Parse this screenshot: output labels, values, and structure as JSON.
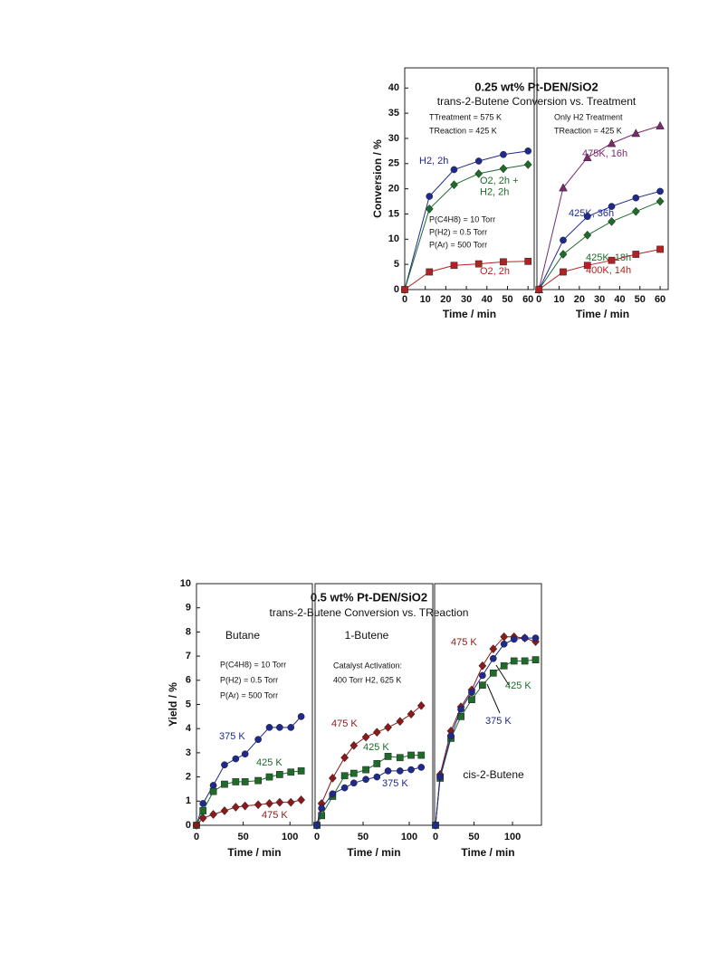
{
  "chart_data": [
    {
      "type": "line",
      "title": "0.25 wt% Pt-DEN/SiO2",
      "subtitle": "trans-2-Butene Conversion vs. Treatment",
      "y_label": "Conversion / %",
      "ylim": [
        0,
        44
      ],
      "yticks": [
        0,
        5,
        10,
        15,
        20,
        25,
        30,
        35,
        40
      ],
      "panels": [
        {
          "x_label": "Time / min",
          "xlim": [
            0,
            63
          ],
          "xticks": [
            0,
            10,
            20,
            30,
            40,
            50,
            60
          ],
          "annotations": [
            "TTreatment = 575 K",
            "TReaction = 425 K",
            "P(C4H8) = 10 Torr",
            "P(H2) = 0.5 Torr",
            "P(Ar) = 500 Torr"
          ],
          "series": [
            {
              "name": "H2, 2h",
              "color": "#1f2a8c",
              "marker": "circle",
              "x": [
                0,
                12,
                24,
                36,
                48,
                60
              ],
              "values": [
                0,
                18.5,
                23.8,
                25.5,
                26.8,
                27.5
              ]
            },
            {
              "name": "O2, 2h + H2, 2h",
              "color": "#1e6b2a",
              "marker": "diamond",
              "x": [
                0,
                12,
                24,
                36,
                48,
                60
              ],
              "values": [
                0,
                16,
                20.8,
                23,
                24,
                24.8
              ]
            },
            {
              "name": "O2, 2h",
              "color": "#b22222",
              "marker": "square",
              "x": [
                0,
                12,
                24,
                36,
                48,
                60
              ],
              "values": [
                0,
                3.5,
                4.8,
                5.1,
                5.5,
                5.6
              ]
            }
          ]
        },
        {
          "x_label": "Time / min",
          "xlim": [
            -1,
            64
          ],
          "xticks": [
            0,
            10,
            20,
            30,
            40,
            50,
            60
          ],
          "annotations": [
            "Only H2 Treatment",
            "TReaction = 425 K"
          ],
          "series": [
            {
              "name": "475K, 16h",
              "color": "#7b2a6e",
              "marker": "triangle",
              "x": [
                0,
                12,
                24,
                36,
                48,
                60
              ],
              "values": [
                0,
                20.2,
                26.2,
                29,
                31,
                32.5
              ]
            },
            {
              "name": "425K, 36h",
              "color": "#1f2a8c",
              "marker": "circle",
              "x": [
                0,
                12,
                24,
                36,
                48,
                60
              ],
              "values": [
                0,
                9.8,
                14.5,
                16.5,
                18.2,
                19.5
              ]
            },
            {
              "name": "425K, 18h",
              "color": "#1e6b2a",
              "marker": "diamond",
              "x": [
                0,
                12,
                24,
                36,
                48,
                60
              ],
              "values": [
                0,
                7,
                10.8,
                13.5,
                15.5,
                17.5
              ]
            },
            {
              "name": "400K, 14h",
              "color": "#b22222",
              "marker": "square",
              "x": [
                0,
                12,
                24,
                36,
                48,
                60
              ],
              "values": [
                0,
                3.5,
                4.8,
                5.8,
                7,
                8
              ]
            }
          ]
        }
      ]
    },
    {
      "type": "line",
      "title": "0.5 wt% Pt-DEN/SiO2",
      "subtitle": "trans-2-Butene Conversion vs. TReaction",
      "y_label": "Yield / %",
      "ylim": [
        0,
        10
      ],
      "yticks": [
        0,
        1,
        2,
        3,
        4,
        5,
        6,
        7,
        8,
        9,
        10
      ],
      "panels": [
        {
          "title": "Butane",
          "x_label": "Time / min",
          "xlim": [
            0,
            124
          ],
          "xticks": [
            0,
            50,
            100
          ],
          "annotations": [
            "P(C4H8) = 10 Torr",
            "P(H2) = 0.5 Torr",
            "P(Ar) = 500 Torr"
          ],
          "series": [
            {
              "name": "375 K",
              "color": "#1f2a8c",
              "marker": "circle",
              "x": [
                0,
                7,
                18,
                30,
                42,
                52,
                66,
                78,
                89,
                101,
                112
              ],
              "values": [
                0,
                0.9,
                1.65,
                2.5,
                2.75,
                2.95,
                3.55,
                4.05,
                4.05,
                4.05,
                4.5
              ]
            },
            {
              "name": "425 K",
              "color": "#1e6b2a",
              "marker": "square",
              "x": [
                0,
                7,
                18,
                30,
                42,
                52,
                66,
                78,
                89,
                101,
                112
              ],
              "values": [
                0,
                0.6,
                1.4,
                1.7,
                1.8,
                1.8,
                1.85,
                2.0,
                2.1,
                2.2,
                2.25
              ]
            },
            {
              "name": "475 K",
              "color": "#8b1a1a",
              "marker": "diamond",
              "x": [
                0,
                7,
                18,
                30,
                42,
                52,
                66,
                78,
                89,
                101,
                112
              ],
              "values": [
                0,
                0.3,
                0.45,
                0.6,
                0.75,
                0.8,
                0.85,
                0.9,
                0.95,
                0.95,
                1.05
              ]
            }
          ]
        },
        {
          "title": "1-Butene",
          "x_label": "Time / min",
          "xlim": [
            -2,
            125.5
          ],
          "xticks": [
            0,
            50,
            100
          ],
          "annotations": [
            "Catalyst Activation:",
            "400 Torr H2, 625 K"
          ],
          "series": [
            {
              "name": "475 K",
              "color": "#8b1a1a",
              "marker": "diamond",
              "x": [
                0,
                5,
                17,
                30,
                40,
                53,
                65,
                77,
                90,
                102,
                113
              ],
              "values": [
                0,
                0.9,
                1.95,
                2.8,
                3.3,
                3.65,
                3.85,
                4.05,
                4.3,
                4.6,
                4.95
              ]
            },
            {
              "name": "425 K",
              "color": "#1e6b2a",
              "marker": "square",
              "x": [
                0,
                5,
                17,
                30,
                40,
                53,
                65,
                77,
                90,
                102,
                113
              ],
              "values": [
                0,
                0.4,
                1.2,
                2.05,
                2.15,
                2.3,
                2.55,
                2.85,
                2.8,
                2.9,
                2.9
              ]
            },
            {
              "name": "375 K",
              "color": "#1f2a8c",
              "marker": "circle",
              "x": [
                0,
                5,
                17,
                30,
                40,
                53,
                65,
                77,
                90,
                102,
                113
              ],
              "values": [
                0,
                0.7,
                1.3,
                1.55,
                1.75,
                1.9,
                2.0,
                2.25,
                2.25,
                2.3,
                2.4
              ]
            }
          ]
        },
        {
          "title": "cis-2-Butene",
          "x_label": "Time / min",
          "xlim": [
            -1.2,
            137.6
          ],
          "xticks": [
            0,
            50,
            100
          ],
          "annotations": [],
          "series": [
            {
              "name": "475 K",
              "color": "#8b1a1a",
              "marker": "diamond",
              "x": [
                0,
                6,
                20,
                33,
                47,
                61,
                75,
                89,
                102,
                116,
                130
              ],
              "values": [
                0,
                2.1,
                3.9,
                4.9,
                5.6,
                6.6,
                7.3,
                7.8,
                7.8,
                7.75,
                7.6
              ]
            },
            {
              "name": "425 K",
              "color": "#1e6b2a",
              "marker": "square",
              "x": [
                0,
                6,
                20,
                33,
                47,
                61,
                75,
                89,
                102,
                116,
                130
              ],
              "values": [
                0,
                1.95,
                3.6,
                4.5,
                5.2,
                5.8,
                6.3,
                6.6,
                6.8,
                6.8,
                6.85
              ]
            },
            {
              "name": "375 K",
              "color": "#1f2a8c",
              "marker": "circle",
              "x": [
                0,
                6,
                20,
                33,
                47,
                61,
                75,
                89,
                102,
                116,
                130
              ],
              "values": [
                0,
                2.0,
                3.7,
                4.8,
                5.5,
                6.2,
                6.9,
                7.5,
                7.7,
                7.75,
                7.75
              ]
            }
          ]
        }
      ]
    }
  ]
}
